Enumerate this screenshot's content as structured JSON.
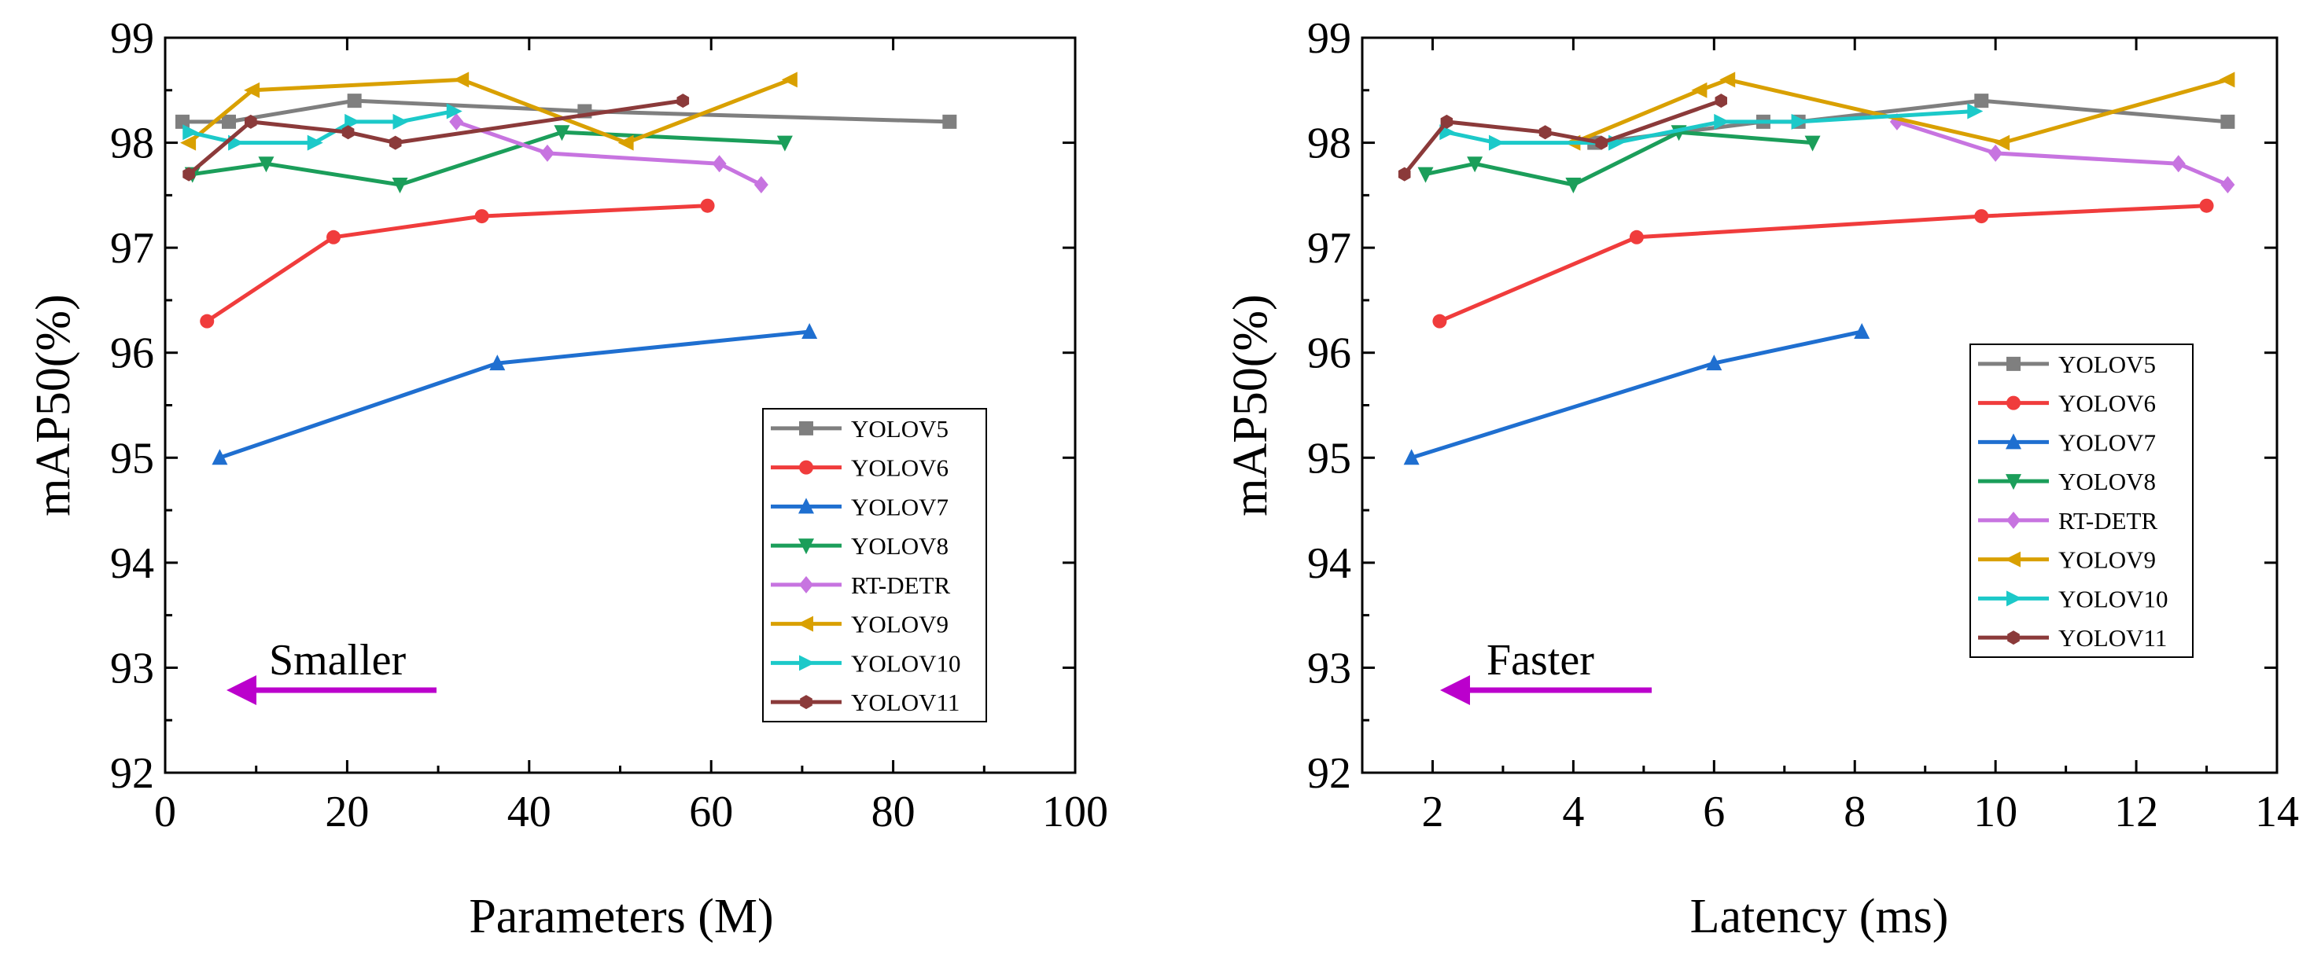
{
  "chart_data": [
    {
      "type": "line",
      "xlabel": "Parameters (M)",
      "ylabel": "mAP50(%)",
      "xlim": [
        0,
        100
      ],
      "ylim": [
        92,
        99
      ],
      "xticks": [
        "0",
        "20",
        "40",
        "60",
        "80",
        "100"
      ],
      "yticks": [
        "92",
        "93",
        "94",
        "95",
        "96",
        "97",
        "98",
        "99"
      ],
      "legend_position": "bottom-right",
      "annotation": {
        "text": "Smaller",
        "arrow_direction": "left",
        "arrow_color": "#BB00CC"
      },
      "series": [
        {
          "name": "YOLOV5",
          "color": "#7F7F7F",
          "marker": "square",
          "x": [
            1.9,
            7.0,
            20.8,
            46.1,
            86.2
          ],
          "y": [
            98.2,
            98.2,
            98.4,
            98.3,
            98.2
          ]
        },
        {
          "name": "YOLOV6",
          "color": "#F03C3C",
          "marker": "circle",
          "x": [
            4.6,
            18.5,
            34.8,
            59.6
          ],
          "y": [
            96.3,
            97.1,
            97.3,
            97.4
          ]
        },
        {
          "name": "YOLOV7",
          "color": "#1F6FD0",
          "marker": "triangle-up",
          "x": [
            6.0,
            36.5,
            70.8
          ],
          "y": [
            95.0,
            95.9,
            96.2
          ]
        },
        {
          "name": "YOLOV8",
          "color": "#1B9E5A",
          "marker": "triangle-down",
          "x": [
            3.0,
            11.1,
            25.8,
            43.6,
            68.1
          ],
          "y": [
            97.7,
            97.8,
            97.6,
            98.1,
            98.0
          ]
        },
        {
          "name": "RT-DETR",
          "color": "#C774E0",
          "marker": "diamond",
          "x": [
            32.0,
            42.0,
            60.9,
            65.5
          ],
          "y": [
            98.2,
            97.9,
            97.8,
            97.6
          ]
        },
        {
          "name": "YOLOV9",
          "color": "#D9A000",
          "marker": "triangle-left",
          "x": [
            2.6,
            9.6,
            32.6,
            50.7,
            68.7
          ],
          "y": [
            98.0,
            98.5,
            98.6,
            98.0,
            98.6
          ]
        },
        {
          "name": "YOLOV10",
          "color": "#1CC9C9",
          "marker": "triangle-right",
          "x": [
            2.7,
            7.7,
            16.4,
            20.5,
            25.8,
            31.7
          ],
          "y": [
            98.1,
            98.0,
            98.0,
            98.2,
            98.2,
            98.3
          ]
        },
        {
          "name": "YOLOV11",
          "color": "#8B3A3A",
          "marker": "hexagon",
          "x": [
            2.6,
            9.4,
            20.1,
            25.3,
            56.9
          ],
          "y": [
            97.7,
            98.2,
            98.1,
            98.0,
            98.4
          ]
        }
      ]
    },
    {
      "type": "line",
      "xlabel": "Latency (ms)",
      "ylabel": "mAP50(%)",
      "xlim": [
        1,
        14
      ],
      "ylim": [
        92,
        99
      ],
      "xticks": [
        "2",
        "4",
        "6",
        "8",
        "10",
        "12",
        "14"
      ],
      "yticks": [
        "92",
        "93",
        "94",
        "95",
        "96",
        "97",
        "98",
        "99"
      ],
      "legend_position": "center-right",
      "annotation": {
        "text": "Faster",
        "arrow_direction": "left",
        "arrow_color": "#BB00CC"
      },
      "series": [
        {
          "name": "YOLOV5",
          "color": "#7F7F7F",
          "marker": "square",
          "x": [
            4.3,
            6.7,
            7.2,
            9.8,
            13.3
          ],
          "y": [
            98.0,
            98.2,
            98.2,
            98.4,
            98.2
          ]
        },
        {
          "name": "YOLOV6",
          "color": "#F03C3C",
          "marker": "circle",
          "x": [
            2.1,
            4.9,
            9.8,
            13.0
          ],
          "y": [
            96.3,
            97.1,
            97.3,
            97.4
          ]
        },
        {
          "name": "YOLOV7",
          "color": "#1F6FD0",
          "marker": "triangle-up",
          "x": [
            1.7,
            6.0,
            8.1
          ],
          "y": [
            95.0,
            95.9,
            96.2
          ]
        },
        {
          "name": "YOLOV8",
          "color": "#1B9E5A",
          "marker": "triangle-down",
          "x": [
            1.9,
            2.6,
            4.0,
            5.5,
            7.4
          ],
          "y": [
            97.7,
            97.8,
            97.6,
            98.1,
            98.0
          ]
        },
        {
          "name": "RT-DETR",
          "color": "#C774E0",
          "marker": "diamond",
          "x": [
            8.6,
            10.0,
            12.6,
            13.3
          ],
          "y": [
            98.2,
            97.9,
            97.8,
            97.6
          ]
        },
        {
          "name": "YOLOV9",
          "color": "#D9A000",
          "marker": "triangle-left",
          "x": [
            4.0,
            5.8,
            6.2,
            10.1,
            13.3
          ],
          "y": [
            98.0,
            98.5,
            98.6,
            98.0,
            98.6
          ]
        },
        {
          "name": "YOLOV10",
          "color": "#1CC9C9",
          "marker": "triangle-right",
          "x": [
            2.2,
            2.9,
            4.6,
            6.1,
            7.2,
            9.7
          ],
          "y": [
            98.1,
            98.0,
            98.0,
            98.2,
            98.2,
            98.3
          ]
        },
        {
          "name": "YOLOV11",
          "color": "#8B3A3A",
          "marker": "hexagon",
          "x": [
            1.6,
            2.2,
            3.6,
            4.4,
            6.1
          ],
          "y": [
            97.7,
            98.2,
            98.1,
            98.0,
            98.4
          ]
        }
      ]
    }
  ]
}
